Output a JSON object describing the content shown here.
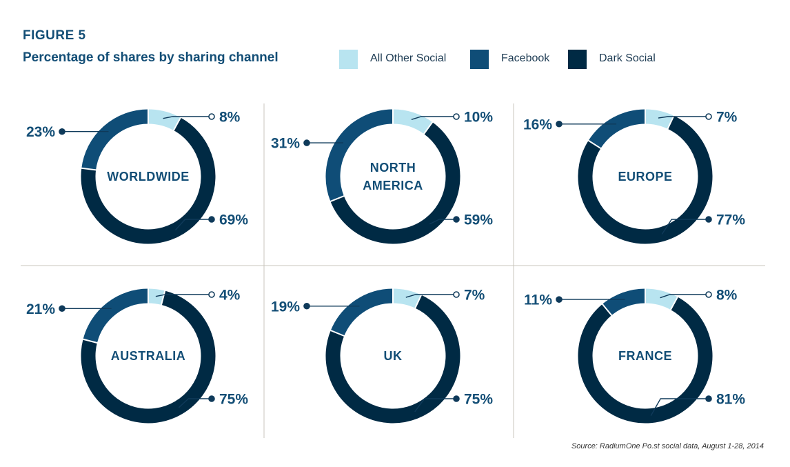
{
  "figure_label": "FIGURE 5",
  "title": "Percentage of shares by sharing channel",
  "source": "Source: RadiumOne Po.st social data, August 1-28, 2014",
  "colors": {
    "all_other_social": "#b8e4f0",
    "facebook": "#0f4d77",
    "dark_social": "#002a44",
    "label_text": "#134e76",
    "divider": "#c9c6bc"
  },
  "legend": [
    {
      "label": "All Other Social",
      "color": "#b8e4f0"
    },
    {
      "label": "Facebook",
      "color": "#0f4d77"
    },
    {
      "label": "Dark Social",
      "color": "#002a44"
    }
  ],
  "chart_data": {
    "type": "pie",
    "variant": "donut",
    "series_names": [
      "All Other Social",
      "Facebook",
      "Dark Social"
    ],
    "charts": [
      {
        "region": [
          "WORLDWIDE"
        ],
        "values": [
          8,
          23,
          69
        ],
        "labels": [
          "8%",
          "23%",
          "69%"
        ]
      },
      {
        "region": [
          "NORTH",
          "AMERICA"
        ],
        "values": [
          10,
          31,
          59
        ],
        "labels": [
          "10%",
          "31%",
          "59%"
        ]
      },
      {
        "region": [
          "EUROPE"
        ],
        "values": [
          7,
          16,
          77
        ],
        "labels": [
          "7%",
          "16%",
          "77%"
        ]
      },
      {
        "region": [
          "AUSTRALIA"
        ],
        "values": [
          4,
          21,
          75
        ],
        "labels": [
          "4%",
          "21%",
          "75%"
        ]
      },
      {
        "region": [
          "UK"
        ],
        "values": [
          7,
          19,
          75
        ],
        "labels": [
          "7%",
          "19%",
          "75%"
        ]
      },
      {
        "region": [
          "FRANCE"
        ],
        "values": [
          8,
          11,
          81
        ],
        "labels": [
          "8%",
          "11%",
          "81%"
        ]
      }
    ]
  }
}
